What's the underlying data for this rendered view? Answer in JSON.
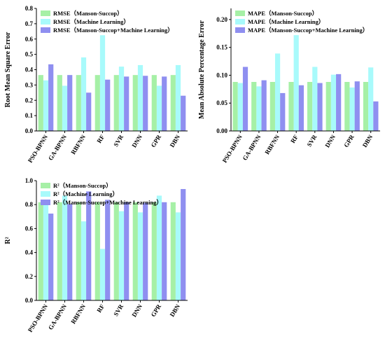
{
  "colors": {
    "Manson-Succop": "#a6f0a6",
    "Machine Learning": "#a8fafb",
    "Manson-Succop+Machine Learning": "#8f8ff0"
  },
  "chart_data": [
    {
      "type": "bar",
      "ylabel": "Root Mean Square Error",
      "ylim": [
        0,
        0.8
      ],
      "yticks": [
        "0.0",
        "0.1",
        "0.2",
        "0.3",
        "0.4",
        "0.5",
        "0.6",
        "0.7",
        "0.8"
      ],
      "yticks_values": [
        0,
        0.1,
        0.2,
        0.3,
        0.4,
        0.5,
        0.6,
        0.7,
        0.8
      ],
      "categories": [
        "PSO-BPNN",
        "GA-BPNN",
        "RBFNN",
        "RF",
        "SVR",
        "DNN",
        "GPR",
        "DBN"
      ],
      "legend_position": "top-left",
      "series": [
        {
          "name": "RMSE（Manson-Succop）",
          "color_key": "Manson-Succop",
          "values": [
            0.365,
            0.365,
            0.365,
            0.365,
            0.365,
            0.365,
            0.365,
            0.365
          ]
        },
        {
          "name": "RMSE（Machine Learning）",
          "color_key": "Machine Learning",
          "values": [
            0.33,
            0.295,
            0.48,
            0.625,
            0.42,
            0.43,
            0.295,
            0.43
          ]
        },
        {
          "name": "RMSE（Manson-Succop+Machine Learning）",
          "color_key": "Manson-Succop+Machine Learning",
          "values": [
            0.435,
            0.365,
            0.25,
            0.335,
            0.355,
            0.36,
            0.355,
            0.23
          ]
        }
      ]
    },
    {
      "type": "bar",
      "ylabel": "Mean Absolute Percentage Error",
      "ylim": [
        0,
        0.22
      ],
      "yticks": [
        "0.00",
        "0.05",
        "0.10",
        "0.15",
        "0.20"
      ],
      "yticks_values": [
        0,
        0.05,
        0.1,
        0.15,
        0.2
      ],
      "categories": [
        "PSO-BPNN",
        "GA-BPNN",
        "RBFNN",
        "RF",
        "SVR",
        "DNN",
        "GPR",
        "DBN"
      ],
      "legend_position": "top-left",
      "series": [
        {
          "name": "MAPE（Manson-Succop）",
          "color_key": "Manson-Succop",
          "values": [
            0.088,
            0.088,
            0.088,
            0.088,
            0.088,
            0.088,
            0.088,
            0.088
          ]
        },
        {
          "name": "MAPE（Machine Learning）",
          "color_key": "Machine Learning",
          "values": [
            0.086,
            0.08,
            0.139,
            0.172,
            0.115,
            0.101,
            0.078,
            0.114
          ]
        },
        {
          "name": "MAPE（Manson-Succop+Machine Learning）",
          "color_key": "Manson-Succop+Machine Learning",
          "values": [
            0.115,
            0.091,
            0.068,
            0.082,
            0.086,
            0.102,
            0.089,
            0.053
          ]
        }
      ]
    },
    {
      "type": "bar",
      "ylabel": "R²",
      "ylim": [
        0,
        1.0
      ],
      "yticks": [
        "0.0",
        "0.2",
        "0.4",
        "0.6",
        "0.8",
        "1.0"
      ],
      "yticks_values": [
        0,
        0.2,
        0.4,
        0.6,
        0.8,
        1.0
      ],
      "categories": [
        "PSO-BPNN",
        "GA-BPNN",
        "RBFNN",
        "RF",
        "SVR",
        "DNN",
        "GPR",
        "DBN"
      ],
      "legend_position": "top-left",
      "series": [
        {
          "name": "R²（Manson-Succop）",
          "color_key": "Manson-Succop",
          "values": [
            0.82,
            0.82,
            0.82,
            0.82,
            0.82,
            0.82,
            0.82,
            0.82
          ]
        },
        {
          "name": "R²（Machine Learning）",
          "color_key": "Machine Learning",
          "values": [
            0.84,
            0.875,
            0.66,
            0.43,
            0.745,
            0.735,
            0.875,
            0.735
          ]
        },
        {
          "name": "R²（Manson-Succop+Machine Learning）",
          "color_key": "Manson-Succop+Machine Learning",
          "values": [
            0.725,
            0.805,
            0.91,
            0.84,
            0.82,
            0.815,
            0.82,
            0.93
          ]
        }
      ]
    }
  ]
}
